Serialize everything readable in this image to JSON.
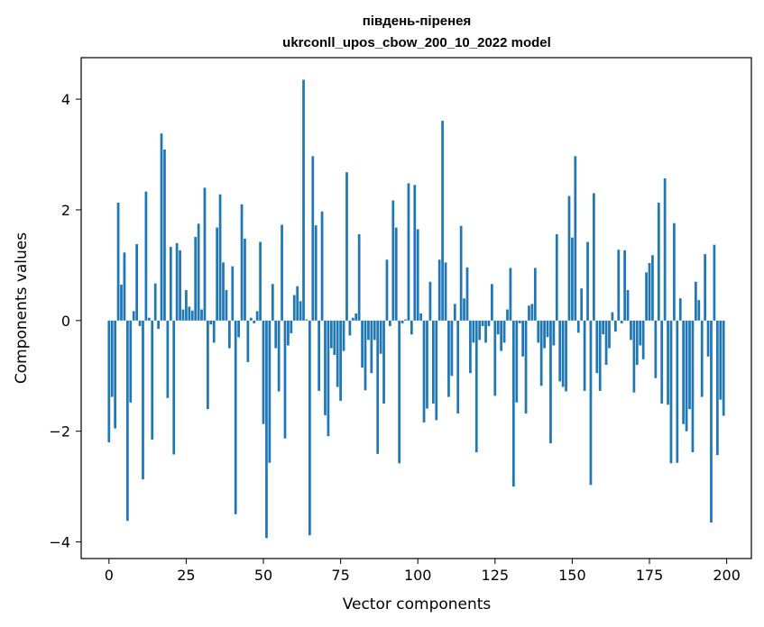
{
  "chart_data": {
    "type": "bar",
    "title": "південь-піренея",
    "subtitle": "ukrconll_upos_cbow_200_10_2022 model",
    "xlabel": "Vector components",
    "ylabel": "Components values",
    "xlim": [
      -9,
      208
    ],
    "ylim": [
      -4.3,
      4.75
    ],
    "xticks": [
      0,
      25,
      50,
      75,
      100,
      125,
      150,
      175,
      200
    ],
    "yticks": [
      -4,
      -2,
      0,
      2,
      4
    ],
    "ytick_labels": [
      "−4",
      "−2",
      "0",
      "2",
      "4"
    ],
    "grid": false,
    "legend": "none",
    "bar_color": "#1f77b4",
    "values": [
      -2.2,
      -1.38,
      -1.95,
      2.13,
      0.65,
      1.23,
      -3.62,
      -1.48,
      0.17,
      1.38,
      -0.1,
      -2.87,
      2.33,
      0.05,
      -2.15,
      0.67,
      -0.15,
      3.38,
      3.09,
      -1.4,
      1.33,
      -2.42,
      1.4,
      1.27,
      0.2,
      0.55,
      0.25,
      0.18,
      1.51,
      1.75,
      0.2,
      2.4,
      -1.6,
      -0.07,
      -0.4,
      1.68,
      2.28,
      1.05,
      0.55,
      -0.5,
      0.98,
      -3.5,
      -0.3,
      2.1,
      1.48,
      -0.75,
      0.05,
      -0.05,
      0.17,
      1.42,
      -1.87,
      -3.93,
      -2.57,
      0.66,
      -0.5,
      -1.28,
      1.73,
      -2.13,
      -0.45,
      -0.23,
      0.46,
      0.62,
      0.35,
      4.35,
      0.02,
      -3.88,
      2.97,
      1.72,
      -1.27,
      1.97,
      -1.71,
      -2.09,
      -0.5,
      -0.62,
      -1.2,
      -1.45,
      -0.55,
      2.68,
      -0.27,
      0.05,
      0.13,
      1.56,
      -0.85,
      -1.26,
      -0.35,
      -0.95,
      -0.35,
      -2.41,
      -0.6,
      -1.5,
      1.1,
      -0.1,
      2.17,
      1.68,
      -2.58,
      -0.05,
      0.02,
      2.48,
      -0.25,
      2.45,
      1.65,
      0.13,
      -1.84,
      -1.59,
      0.7,
      -1.5,
      -1.8,
      1.1,
      3.61,
      1.05,
      -1.38,
      -1.0,
      0.3,
      -1.68,
      1.71,
      0.4,
      0.96,
      -0.95,
      -0.4,
      -2.38,
      -0.35,
      -0.1,
      -0.4,
      -0.1,
      0.66,
      -1.36,
      -0.25,
      -0.55,
      -0.4,
      0.2,
      0.95,
      -3.0,
      -1.48,
      -0.05,
      -0.65,
      -1.68,
      0.27,
      0.3,
      0.95,
      -0.4,
      -1.18,
      -0.5,
      -0.3,
      -2.22,
      -0.45,
      1.56,
      -1.1,
      -1.2,
      -1.28,
      2.25,
      1.5,
      2.97,
      -0.22,
      0.58,
      -1.27,
      1.42,
      -2.97,
      2.3,
      -0.95,
      -1.27,
      -0.25,
      -0.8,
      -0.5,
      0.15,
      -0.2,
      1.28,
      -0.05,
      1.27,
      0.55,
      -0.35,
      -1.3,
      -0.8,
      -0.45,
      -0.7,
      0.87,
      1.04,
      1.18,
      -1.04,
      2.13,
      -1.5,
      2.57,
      -1.52,
      -2.58,
      1.76,
      -2.57,
      0.4,
      -1.87,
      -2.0,
      -1.6,
      -2.38,
      0.7,
      0.37,
      -1.38,
      1.2,
      -0.65,
      -3.65,
      1.37,
      -2.43,
      -1.43,
      -1.72
    ]
  }
}
